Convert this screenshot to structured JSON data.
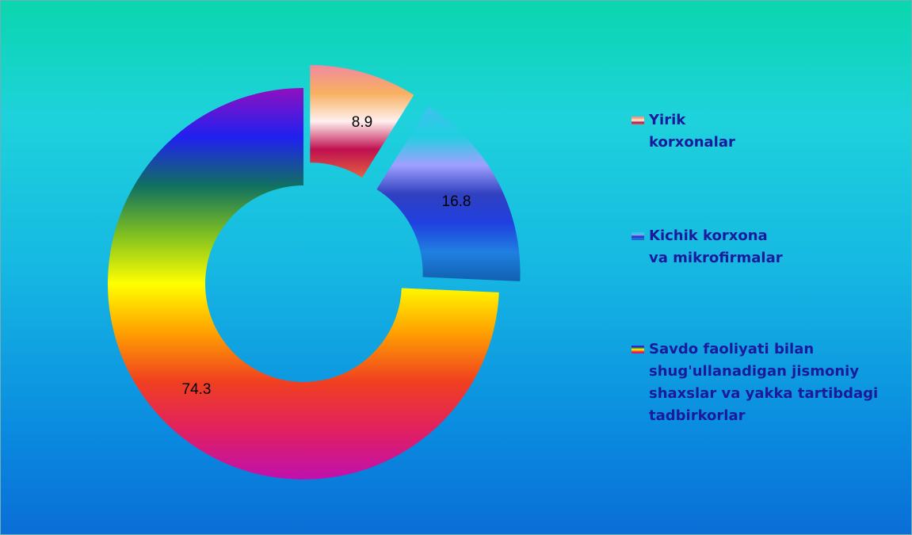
{
  "chart_data": {
    "type": "donut",
    "categories": [
      "Yirik korxonalar",
      "Kichik korxona va mikrofirmalar",
      "Savdo faoliyati bilan shug'ullanadigan jismoniy shaxslar va yakka tartibdagi tadbirkorlar"
    ],
    "values": [
      8.9,
      16.8,
      74.3
    ],
    "colors": [
      [
        "#f08aa0",
        "#f8b060",
        "#fff0f0",
        "#c01050",
        "#e06040"
      ],
      [
        "#40c0f0",
        "#20d0e0",
        "#a0a0ff",
        "#3040c0",
        "#2040e0",
        "#2080e0",
        "#1060b0"
      ],
      [
        "#9010c0",
        "#2020f0",
        "#107060",
        "#80c020",
        "#ffff00",
        "#ffa000",
        "#f04020",
        "#e02060",
        "#c010b0"
      ]
    ],
    "legend": "right"
  }
}
